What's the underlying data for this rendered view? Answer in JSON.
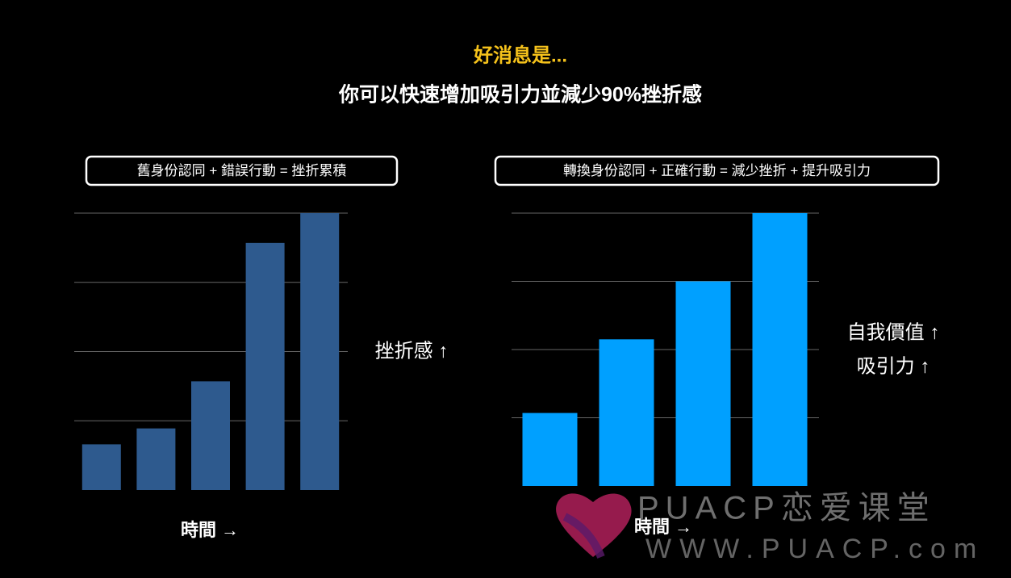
{
  "header": {
    "title": "好消息是...",
    "subtitle": "你可以快速增加吸引力並減少90%挫折感"
  },
  "chart_data": [
    {
      "type": "bar",
      "title": "舊身份認同 + 錯誤行動 = 挫折累積",
      "categories": [
        null,
        null,
        null,
        null,
        null
      ],
      "values": [
        0.66,
        0.89,
        1.57,
        3.57,
        4.0
      ],
      "color": "#2e5a8e",
      "ylim": [
        0,
        4
      ],
      "yticks": [
        1,
        2,
        3,
        4
      ],
      "grid": true,
      "xlabel": "時間 →",
      "annotations": [
        "挫折感 ↑"
      ]
    },
    {
      "type": "bar",
      "title": "轉換身份認同 + 正確行動 = 減少挫折 + 提升吸引力",
      "categories": [
        null,
        null,
        null,
        null
      ],
      "values": [
        1.07,
        2.15,
        3.0,
        4.0
      ],
      "color": "#00a0ff",
      "ylim": [
        0,
        4
      ],
      "yticks": [
        1,
        2,
        3,
        4
      ],
      "grid": true,
      "xlabel": "時間 →",
      "annotations": [
        "自我價值 ↑",
        "吸引力 ↑"
      ]
    }
  ],
  "watermark": {
    "brand": "PUACP恋爱课堂",
    "url": "WWW.PUACP.com"
  }
}
